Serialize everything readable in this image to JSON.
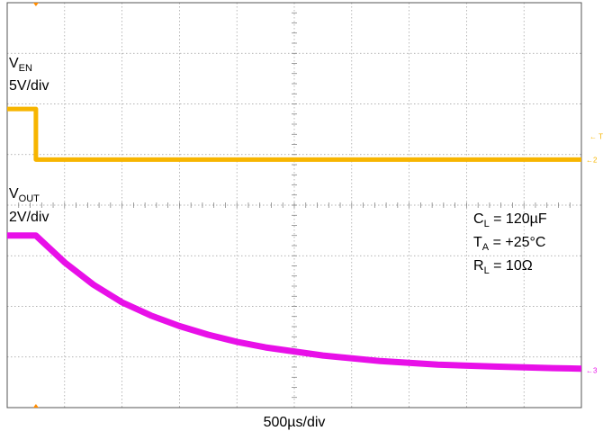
{
  "chart_data": {
    "type": "line",
    "x_unit": "µs",
    "xlim": [
      -250,
      4750
    ],
    "time_scale": "500µs/div",
    "grid": true,
    "channels": [
      {
        "label_main": "V",
        "label_sub": "EN",
        "scale": "5V/div",
        "unit": "V",
        "color": "#f7b500",
        "volts_per_div": 5,
        "x": [
          -250,
          0,
          0,
          4750
        ],
        "y": [
          0,
          0,
          -5,
          -5
        ]
      },
      {
        "label_main": "V",
        "label_sub": "OUT",
        "scale": "2V/div",
        "unit": "V",
        "color": "#e810e8",
        "volts_per_div": 2,
        "x": [
          -250,
          0,
          250,
          500,
          750,
          1000,
          1250,
          1500,
          1750,
          2000,
          2500,
          3000,
          3500,
          4000,
          4500,
          4750
        ],
        "y": [
          0,
          0,
          -1.06,
          -1.94,
          -2.64,
          -3.16,
          -3.58,
          -3.92,
          -4.2,
          -4.42,
          -4.74,
          -4.96,
          -5.1,
          -5.18,
          -5.24,
          -5.26
        ]
      }
    ],
    "markers": {
      "trigger": "T",
      "ch2": "2",
      "ch3": "3"
    },
    "annotations": [
      {
        "main": "C",
        "sub": "L",
        "rest": " = 120µF"
      },
      {
        "main": "T",
        "sub": "A",
        "rest": " = +25°C"
      },
      {
        "main": "R",
        "sub": "L",
        "rest": " = 10Ω"
      }
    ],
    "trigger_color": "#ff8c00"
  }
}
